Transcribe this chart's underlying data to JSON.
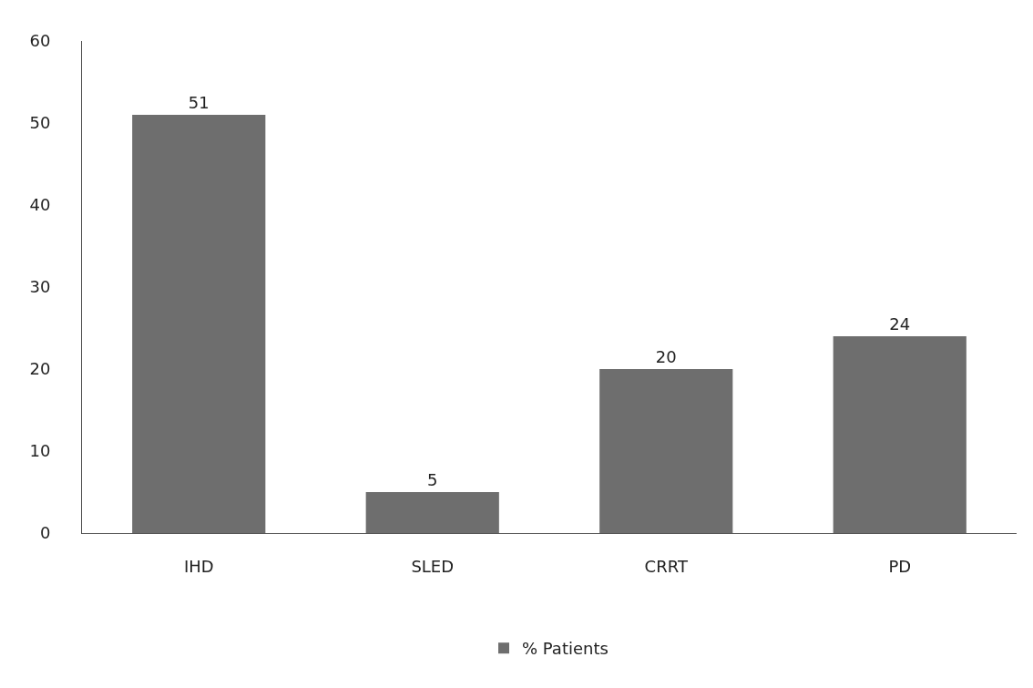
{
  "chart_data": {
    "type": "bar",
    "categories": [
      "IHD",
      "SLED",
      "CRRT",
      "PD"
    ],
    "series": [
      {
        "name": "% Patients",
        "color": "#6e6e6e",
        "values": [
          51,
          5,
          20,
          24
        ]
      }
    ],
    "ylim": [
      0,
      60
    ],
    "yticks": [
      0,
      10,
      20,
      30,
      40,
      50,
      60
    ],
    "grid": false,
    "legend": "bottom",
    "data_labels": true
  }
}
